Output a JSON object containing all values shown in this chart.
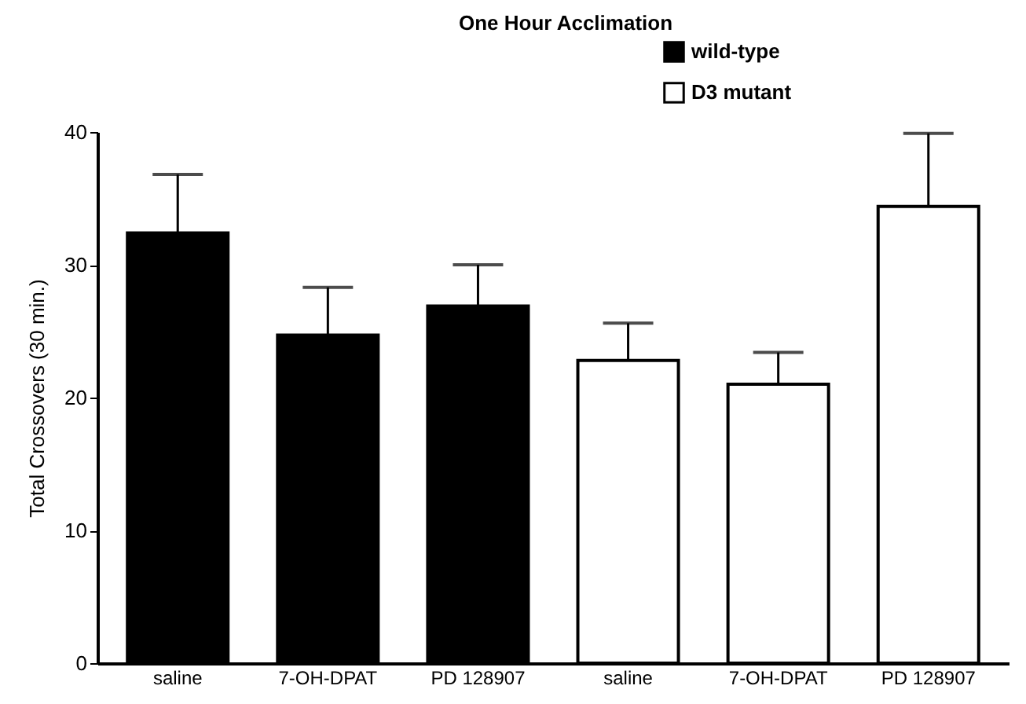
{
  "chart_data": {
    "type": "bar",
    "title": "One Hour Acclimation",
    "ylabel": "Total Crossovers (30 min.)",
    "categories": [
      "saline",
      "7-OH-DPAT",
      "PD 128907",
      "saline",
      "7-OH-DPAT",
      "PD 128907"
    ],
    "series": [
      {
        "name": "wild-type",
        "color": "#000000",
        "values": [
          32.4,
          24.7,
          26.9,
          null,
          null,
          null
        ],
        "errors": [
          [
            32.4,
            36.8
          ],
          [
            24.7,
            28.3
          ],
          [
            26.9,
            30.0
          ],
          null,
          null,
          null
        ]
      },
      {
        "name": "D3 mutant",
        "color": "#ffffff",
        "values": [
          null,
          null,
          null,
          22.8,
          21.0,
          34.4
        ],
        "errors": [
          null,
          null,
          null,
          [
            22.8,
            25.6
          ],
          [
            21.0,
            23.4
          ],
          [
            34.4,
            39.9
          ]
        ]
      }
    ],
    "ylim": [
      0,
      40
    ],
    "yticks": [
      0,
      10,
      20,
      30,
      40
    ],
    "grid": false,
    "legend": "top right"
  }
}
